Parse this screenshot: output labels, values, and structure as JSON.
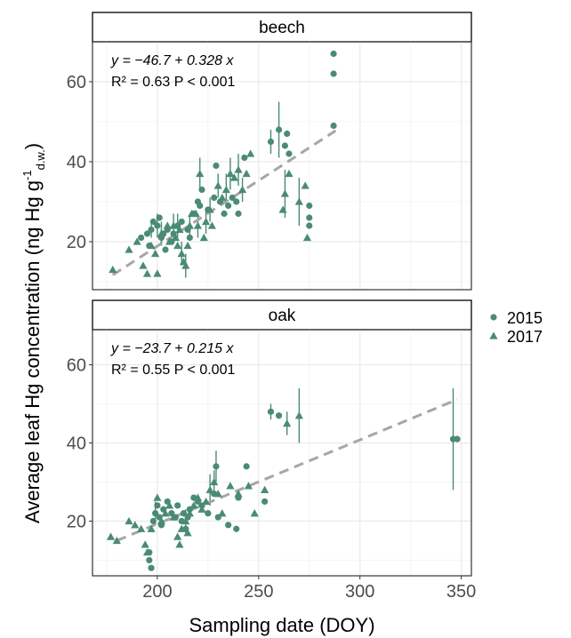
{
  "colors": {
    "points": "#4a8b73",
    "fit": "#a6a6a6",
    "grid": "#ebebeb",
    "grid_minor": "#f4f4f4"
  },
  "chart_data": {
    "type": "scatter",
    "xlabel": "Sampling date (DOY)",
    "ylabel_main": "Average leaf Hg concentration  (ng Hg g",
    "ylabel_sub": "d.w.",
    "ylabel_sup": "-1",
    "ylabel_close": ")",
    "xlim": [
      168,
      355
    ],
    "x_ticks": [
      200,
      250,
      300,
      350
    ],
    "legend": {
      "position": "right",
      "entries": [
        {
          "label": "2015",
          "shape": "circle"
        },
        {
          "label": "2017",
          "shape": "triangle"
        }
      ]
    },
    "panels": [
      {
        "strip": "beech",
        "ylim": [
          8,
          70
        ],
        "y_ticks": [
          20,
          40,
          60
        ],
        "fit": {
          "intercept": -46.7,
          "slope": 0.328,
          "x_range": [
            178,
            288
          ]
        },
        "eq_line1": "y = −46.7 + 0.328 x",
        "eq_line2": "R² = 0.63   P < 0.001",
        "points_2015": [
          [
            192,
            21,
            0
          ],
          [
            195,
            22,
            0
          ],
          [
            196,
            19,
            0
          ],
          [
            197,
            23,
            2
          ],
          [
            198,
            25,
            0
          ],
          [
            200,
            24,
            3
          ],
          [
            201,
            26,
            0
          ],
          [
            202,
            21,
            2
          ],
          [
            203,
            22,
            0
          ],
          [
            204,
            18,
            0
          ],
          [
            205,
            23,
            0
          ],
          [
            207,
            20,
            0
          ],
          [
            208,
            22,
            0
          ],
          [
            210,
            24,
            3
          ],
          [
            212,
            25,
            0
          ],
          [
            215,
            23,
            0
          ],
          [
            216,
            21,
            0
          ],
          [
            218,
            27,
            0
          ],
          [
            220,
            30,
            0
          ],
          [
            221,
            29,
            0
          ],
          [
            222,
            33,
            0
          ],
          [
            225,
            28,
            0
          ],
          [
            228,
            31,
            0
          ],
          [
            229,
            39,
            0
          ],
          [
            231,
            30,
            0
          ],
          [
            233,
            27,
            0
          ],
          [
            235,
            29,
            0
          ],
          [
            237,
            31,
            0
          ],
          [
            239,
            30,
            0
          ],
          [
            240,
            27,
            0
          ],
          [
            243,
            41,
            0
          ],
          [
            256,
            45,
            3
          ],
          [
            260,
            48,
            7
          ],
          [
            263,
            44,
            0
          ],
          [
            264,
            47,
            0
          ],
          [
            265,
            42,
            0
          ],
          [
            275,
            29,
            0
          ],
          [
            275,
            26,
            0
          ],
          [
            275,
            24,
            0
          ],
          [
            287,
            67,
            0
          ],
          [
            287,
            62,
            0
          ],
          [
            287,
            49,
            0
          ]
        ],
        "points_2017": [
          [
            178,
            13,
            0
          ],
          [
            186,
            18,
            0
          ],
          [
            190,
            20,
            0
          ],
          [
            193,
            14,
            0
          ],
          [
            195,
            12,
            0
          ],
          [
            197,
            19,
            0
          ],
          [
            199,
            17,
            0
          ],
          [
            200,
            12,
            0
          ],
          [
            202,
            22,
            3
          ],
          [
            205,
            24,
            0
          ],
          [
            206,
            20,
            0
          ],
          [
            208,
            24,
            3
          ],
          [
            209,
            21,
            0
          ],
          [
            210,
            19,
            0
          ],
          [
            211,
            23,
            0
          ],
          [
            212,
            17,
            3
          ],
          [
            213,
            15,
            0
          ],
          [
            214,
            14,
            3
          ],
          [
            215,
            19,
            0
          ],
          [
            216,
            24,
            3
          ],
          [
            217,
            27,
            0
          ],
          [
            219,
            27,
            0
          ],
          [
            220,
            24,
            3
          ],
          [
            221,
            37,
            4
          ],
          [
            223,
            21,
            0
          ],
          [
            224,
            25,
            3
          ],
          [
            226,
            28,
            3
          ],
          [
            227,
            24,
            0
          ],
          [
            230,
            34,
            3
          ],
          [
            232,
            31,
            0
          ],
          [
            234,
            33,
            4
          ],
          [
            236,
            37,
            4
          ],
          [
            238,
            36,
            0
          ],
          [
            240,
            38,
            4
          ],
          [
            242,
            33,
            3
          ],
          [
            244,
            37,
            0
          ],
          [
            246,
            42,
            0
          ],
          [
            262,
            28,
            0
          ],
          [
            263,
            32,
            6
          ],
          [
            265,
            37,
            0
          ],
          [
            270,
            30,
            6
          ],
          [
            273,
            34,
            0
          ],
          [
            274,
            21,
            0
          ]
        ]
      },
      {
        "strip": "oak",
        "ylim": [
          6,
          69
        ],
        "y_ticks": [
          20,
          40,
          60
        ],
        "fit": {
          "intercept": -23.7,
          "slope": 0.215,
          "x_range": [
            180,
            348
          ]
        },
        "eq_line1": "y = −23.7 + 0.215 x",
        "eq_line2": "R² = 0.55   P < 0.001",
        "points_2015": [
          [
            196,
            12,
            0
          ],
          [
            196,
            10,
            0
          ],
          [
            197,
            8,
            0
          ],
          [
            198,
            20,
            0
          ],
          [
            199,
            22,
            3
          ],
          [
            200,
            24,
            0
          ],
          [
            201,
            21,
            0
          ],
          [
            202,
            19,
            0
          ],
          [
            203,
            23,
            0
          ],
          [
            205,
            25,
            0
          ],
          [
            207,
            22,
            0
          ],
          [
            209,
            21,
            0
          ],
          [
            210,
            24,
            0
          ],
          [
            212,
            20,
            0
          ],
          [
            213,
            22,
            0
          ],
          [
            214,
            18,
            0
          ],
          [
            215,
            21,
            0
          ],
          [
            216,
            23,
            0
          ],
          [
            218,
            26,
            0
          ],
          [
            220,
            25,
            0
          ],
          [
            222,
            24,
            0
          ],
          [
            225,
            22,
            0
          ],
          [
            228,
            27,
            0
          ],
          [
            229,
            34,
            4
          ],
          [
            230,
            21,
            0
          ],
          [
            235,
            19,
            0
          ],
          [
            239,
            18,
            0
          ],
          [
            240,
            26,
            0
          ],
          [
            244,
            34,
            0
          ],
          [
            253,
            25,
            0
          ],
          [
            256,
            48,
            2
          ],
          [
            260,
            47,
            0
          ],
          [
            346,
            41,
            13
          ],
          [
            348,
            41,
            0
          ]
        ],
        "points_2017": [
          [
            177,
            16,
            0
          ],
          [
            180,
            15,
            0
          ],
          [
            186,
            20,
            0
          ],
          [
            189,
            19,
            0
          ],
          [
            192,
            18,
            0
          ],
          [
            194,
            14,
            0
          ],
          [
            195,
            12,
            0
          ],
          [
            197,
            18,
            0
          ],
          [
            200,
            26,
            0
          ],
          [
            202,
            20,
            0
          ],
          [
            204,
            22,
            0
          ],
          [
            206,
            24,
            0
          ],
          [
            208,
            21,
            0
          ],
          [
            210,
            16,
            0
          ],
          [
            211,
            14,
            0
          ],
          [
            212,
            18,
            0
          ],
          [
            214,
            20,
            3
          ],
          [
            215,
            17,
            0
          ],
          [
            216,
            22,
            0
          ],
          [
            218,
            24,
            0
          ],
          [
            220,
            26,
            0
          ],
          [
            222,
            23,
            0
          ],
          [
            224,
            25,
            0
          ],
          [
            226,
            28,
            4
          ],
          [
            228,
            30,
            3
          ],
          [
            230,
            27,
            0
          ],
          [
            232,
            22,
            0
          ],
          [
            236,
            29,
            0
          ],
          [
            240,
            27,
            0
          ],
          [
            245,
            29,
            0
          ],
          [
            248,
            22,
            0
          ],
          [
            253,
            28,
            0
          ],
          [
            264,
            45,
            3
          ],
          [
            270,
            47,
            7
          ]
        ]
      }
    ]
  }
}
